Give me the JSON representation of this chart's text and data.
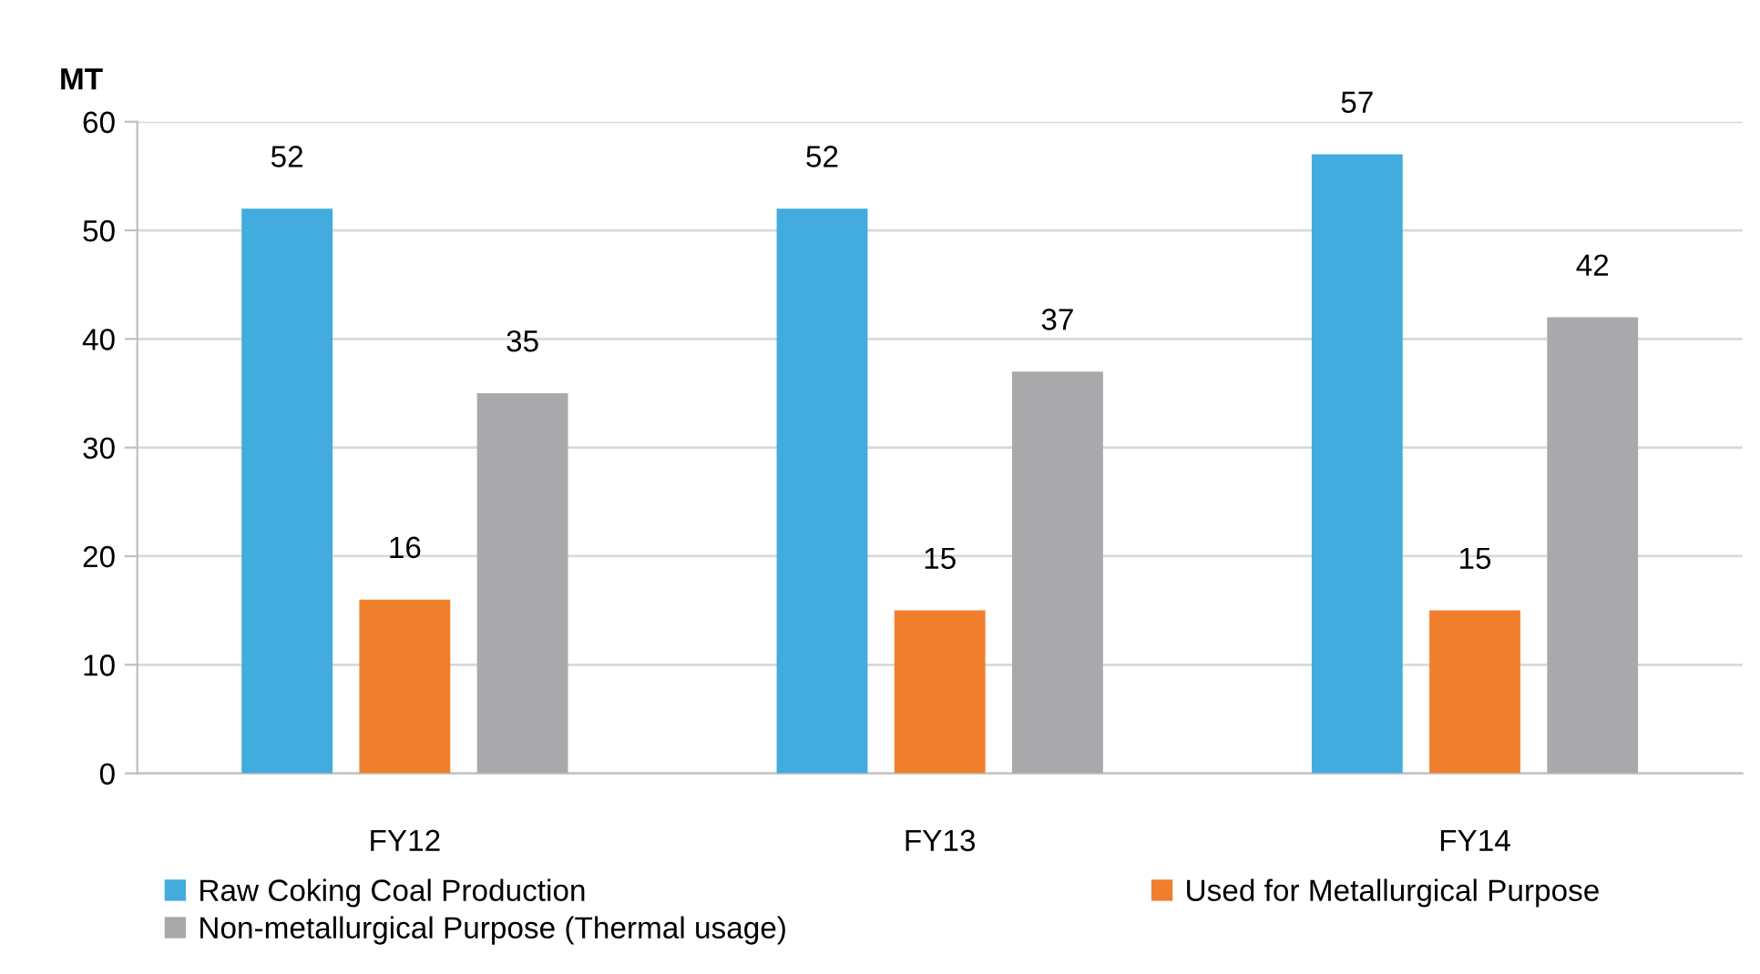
{
  "chart_data": {
    "type": "bar",
    "ylabel": "MT",
    "categories": [
      "FY12",
      "FY13",
      "FY14"
    ],
    "series": [
      {
        "name": "Raw Coking Coal Production",
        "color": "#41acdd",
        "values": [
          52,
          52,
          57
        ]
      },
      {
        "name": "Used for Metallurgical Purpose",
        "color": "#f07f2d",
        "values": [
          16,
          15,
          15
        ]
      },
      {
        "name": "Non-metallurgical Purpose (Thermal usage)",
        "color": "#a9a9ab",
        "values": [
          35,
          37,
          42
        ]
      }
    ],
    "ylim": [
      0,
      60
    ],
    "yticks": [
      0,
      10,
      20,
      30,
      40,
      50,
      60
    ],
    "grid": "y",
    "legend": "bottom",
    "data_labels": true
  }
}
